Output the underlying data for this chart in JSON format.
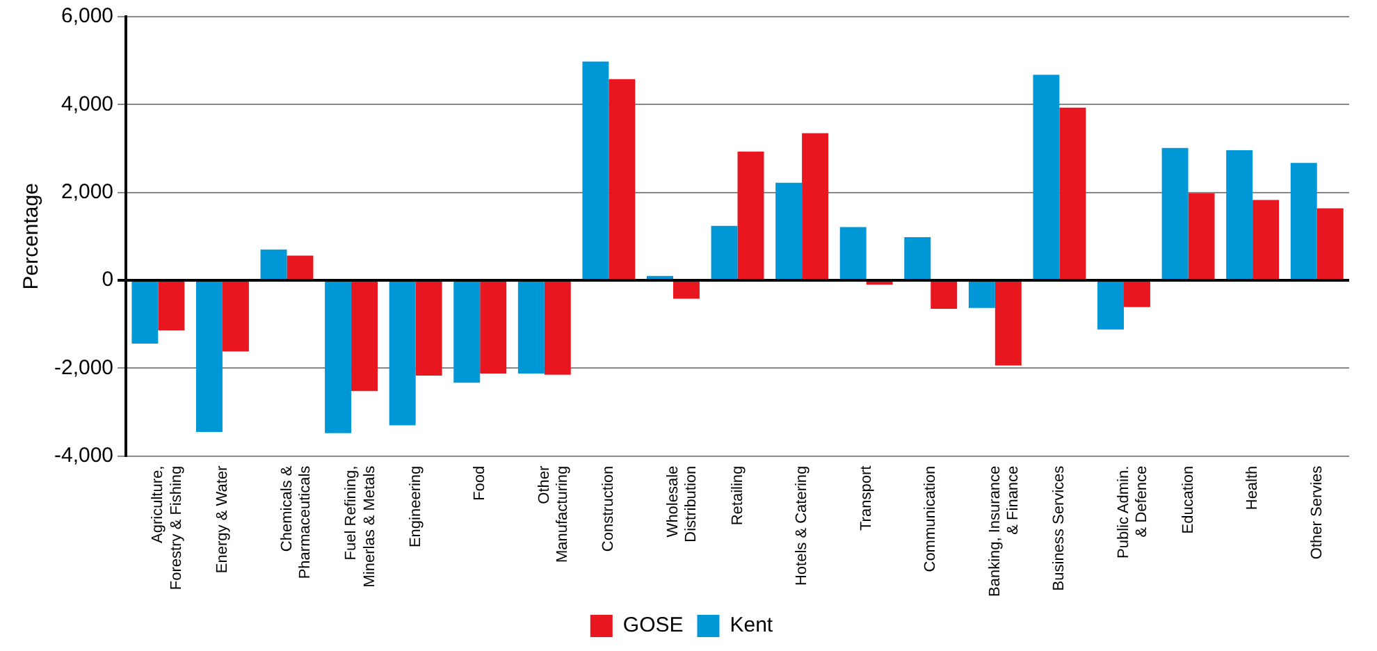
{
  "chart_data": {
    "type": "bar",
    "ylabel": "Percentage",
    "categories": [
      "Agriculture, Forestry & Fishing",
      "Energy & Water",
      "Chemicals & Pharmaceuticals",
      "Fuel Refining, Minerlas & Metals",
      "Engineering",
      "Food",
      "Other Manufacturing",
      "Construction",
      "Wholesale Distribution",
      "Retailing",
      "Hotels & Catering",
      "Transport",
      "Communication",
      "Banking, Insurance & Finance",
      "Business Services",
      "Public Admin. & Defence",
      "Education",
      "Health",
      "Other Servies"
    ],
    "series": [
      {
        "name": "Kent",
        "color": "#0097d7",
        "values": [
          -1440,
          -3450,
          700,
          -3480,
          -3300,
          -2330,
          -2120,
          4980,
          100,
          1240,
          2220,
          1210,
          980,
          -630,
          4680,
          -1120,
          3010,
          2960,
          2670
        ]
      },
      {
        "name": "GOSE",
        "color": "#e8161e",
        "values": [
          -1140,
          -1620,
          560,
          -2520,
          -2170,
          -2120,
          -2150,
          4580,
          -420,
          2930,
          3350,
          -100,
          -650,
          -1940,
          3930,
          -610,
          1980,
          1830,
          1640
        ]
      }
    ],
    "ylim": [
      -4000,
      6000
    ],
    "yticks": [
      {
        "value": -4000,
        "label": "-4,000"
      },
      {
        "value": -2000,
        "label": "-2,000"
      },
      0,
      {
        "value": 2000,
        "label": "2,000"
      },
      {
        "value": 4000,
        "label": "4,000"
      },
      {
        "value": 6000,
        "label": "6,000"
      }
    ],
    "grid": "y",
    "legend": "bottom"
  }
}
